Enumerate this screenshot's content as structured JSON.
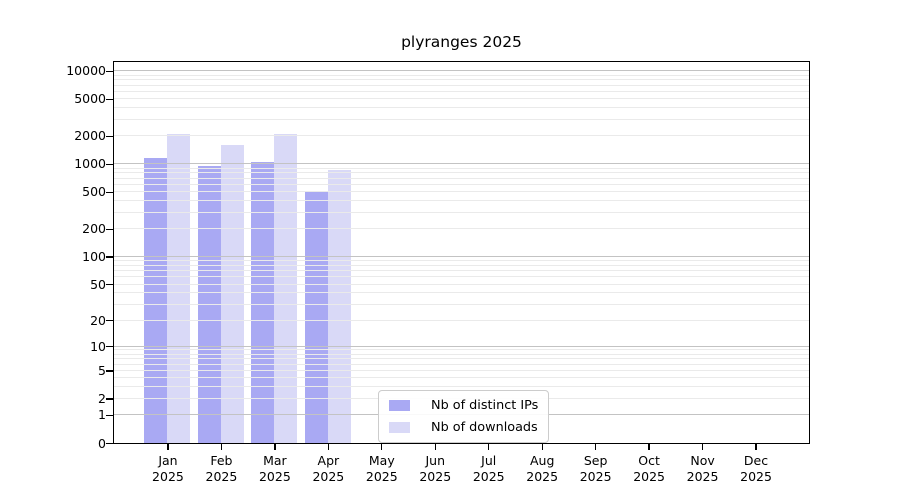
{
  "title": "plyranges 2025",
  "legend": {
    "items": [
      {
        "label": "Nb of distinct IPs",
        "color": "#a9a9f3"
      },
      {
        "label": "Nb of downloads",
        "color": "#d9d9f7"
      }
    ]
  },
  "chart_data": {
    "type": "bar",
    "title": "plyranges 2025",
    "xlabel": "",
    "ylabel": "",
    "scale": "log10(value+1)",
    "categories": [
      "Jan",
      "Feb",
      "Mar",
      "Apr",
      "May",
      "Jun",
      "Jul",
      "Aug",
      "Sep",
      "Oct",
      "Nov",
      "Dec"
    ],
    "year_label": "2025",
    "series": [
      {
        "name": "Nb of distinct IPs",
        "color": "#a9a9f3",
        "values": [
          1150,
          940,
          1060,
          500,
          null,
          null,
          null,
          null,
          null,
          null,
          null,
          null
        ]
      },
      {
        "name": "Nb of downloads",
        "color": "#d9d9f7",
        "values": [
          2100,
          1600,
          2100,
          870,
          null,
          null,
          null,
          null,
          null,
          null,
          null,
          null
        ]
      }
    ],
    "yticks": [
      0,
      1,
      2,
      5,
      10,
      20,
      50,
      100,
      200,
      500,
      1000,
      2000,
      5000,
      10000
    ],
    "minor_gridlines": [
      3,
      4,
      6,
      7,
      8,
      9,
      30,
      40,
      60,
      70,
      80,
      90,
      300,
      400,
      600,
      700,
      800,
      900,
      3000,
      4000,
      6000,
      7000,
      8000,
      9000
    ],
    "ylim": [
      0,
      12470
    ],
    "grid": true,
    "legend_position": "lower center inside",
    "colors": {
      "major_gridline": "#c3c3c3",
      "minor_gridline": "#eaeaea",
      "axis_spine": "#000000",
      "background": "#ffffff"
    }
  }
}
